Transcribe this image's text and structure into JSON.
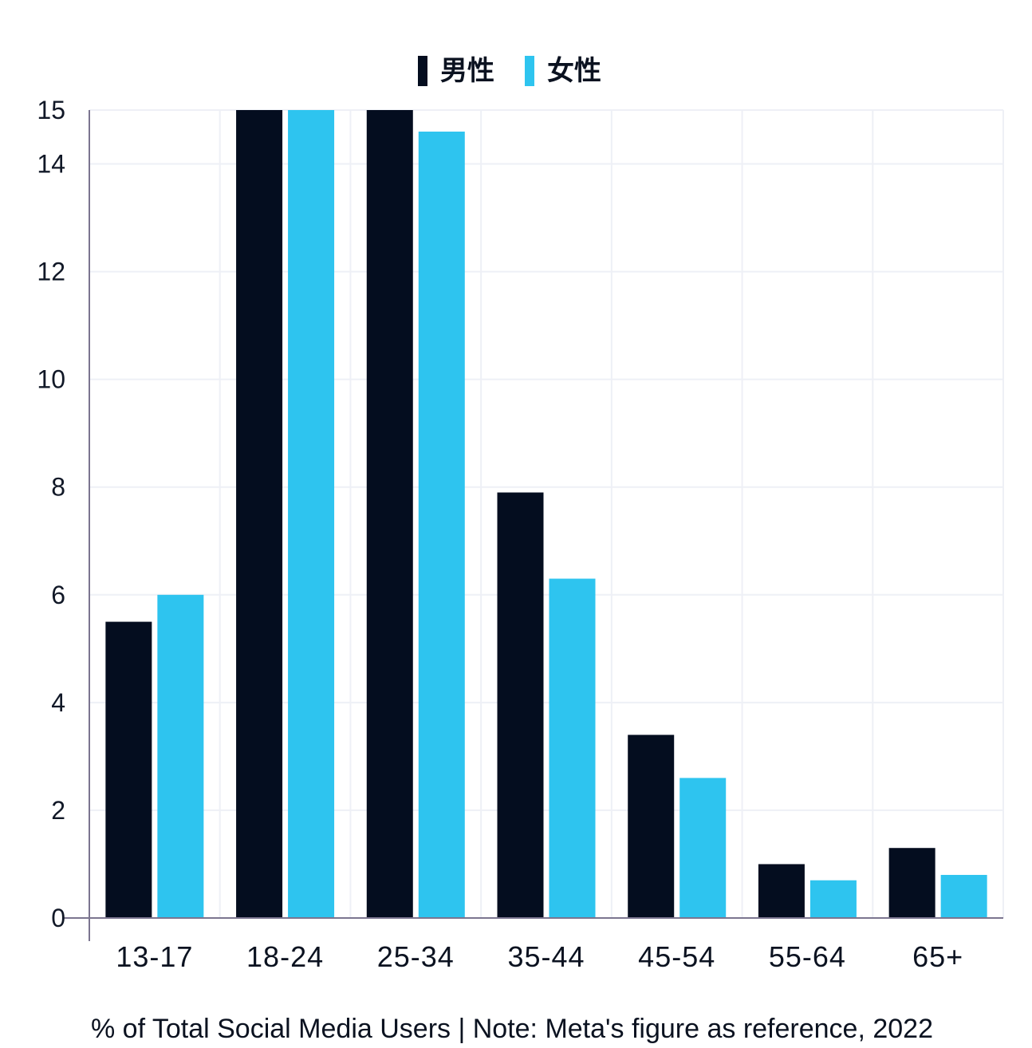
{
  "footer": {
    "note": "% of Total Social Media Users | Note: Meta's figure as reference, 2022"
  },
  "colors": {
    "male": "#040d1f",
    "female": "#2ec4ef",
    "grid": "#eef0f6",
    "axis": "#7b7590"
  },
  "chart_data": {
    "type": "bar",
    "categories": [
      "13-17",
      "18-24",
      "25-34",
      "35-44",
      "45-54",
      "55-64",
      "65+"
    ],
    "series": [
      {
        "name": "男性",
        "values": [
          5.5,
          15,
          15,
          7.9,
          3.4,
          1.0,
          1.3
        ]
      },
      {
        "name": "女性",
        "values": [
          6.0,
          15,
          14.6,
          6.3,
          2.6,
          0.7,
          0.8
        ]
      }
    ],
    "ylim": [
      0,
      15
    ],
    "yticks": [
      0,
      2,
      4,
      6,
      8,
      10,
      12,
      14,
      15
    ],
    "legend_position": "top-center",
    "grid": true,
    "title": "",
    "xlabel": "",
    "ylabel": ""
  }
}
